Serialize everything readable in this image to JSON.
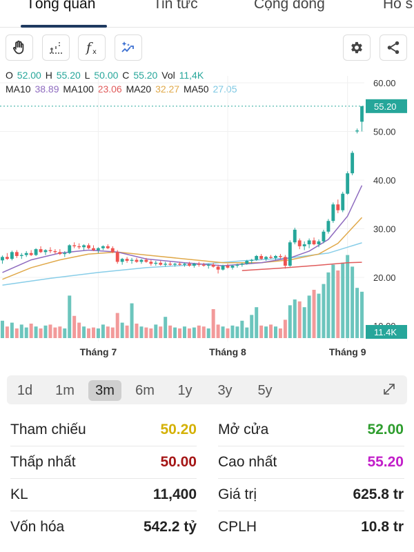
{
  "tabs": [
    {
      "label": "Tổng quan",
      "active": true
    },
    {
      "label": "Tin tức",
      "active": false
    },
    {
      "label": "Cộng đồng",
      "active": false
    },
    {
      "label": "Hồ s",
      "active": false
    }
  ],
  "toolbar": {
    "left_icons": [
      "hand-icon",
      "crosshair-icon",
      "function-icon",
      "magic-wand-icon"
    ],
    "right_icons": [
      "gear-icon",
      "share-icon"
    ]
  },
  "legend": {
    "ohlc": [
      {
        "k": "O",
        "v": "52.00"
      },
      {
        "k": "H",
        "v": "55.20"
      },
      {
        "k": "L",
        "v": "50.00"
      },
      {
        "k": "C",
        "v": "55.20"
      },
      {
        "k": "Vol",
        "v": "11,4K"
      }
    ],
    "ma": [
      {
        "k": "MA10",
        "v": "38.89",
        "color": "#8e6bbf"
      },
      {
        "k": "MA100",
        "v": "23.06",
        "color": "#e05a5a"
      },
      {
        "k": "MA20",
        "v": "32.27",
        "color": "#e0a94a"
      },
      {
        "k": "MA50",
        "v": "27.05",
        "color": "#7ec8e3"
      }
    ]
  },
  "colors": {
    "up": "#26a69a",
    "down": "#ef5350",
    "vol_up": "#6cc5bd",
    "vol_down": "#f29a9a",
    "ma10": "#8e6bbf",
    "ma20": "#e0a94a",
    "ma50": "#87cde8",
    "ma100": "#e05a5a"
  },
  "chart_data": {
    "type": "candlestick",
    "ylim": [
      15,
      62
    ],
    "y_ticks": [
      "60.00",
      "50.00",
      "40.00",
      "30.00",
      "20.00",
      "10.00"
    ],
    "y_tick_values": [
      60,
      50,
      40,
      30,
      20,
      10
    ],
    "x_labels": [
      "Tháng 7",
      "Tháng 8",
      "Tháng 9"
    ],
    "x_label_indices": [
      20,
      47,
      72
    ],
    "last_price": "55.20",
    "last_volume": "11.4K",
    "candles": [
      [
        23.5,
        24.5,
        22.8,
        24.2
      ],
      [
        24.2,
        25.0,
        23.6,
        23.8
      ],
      [
        23.8,
        25.5,
        23.5,
        25.2
      ],
      [
        25.2,
        25.6,
        24.0,
        24.4
      ],
      [
        24.4,
        25.0,
        23.8,
        24.6
      ],
      [
        24.6,
        25.4,
        24.2,
        25.0
      ],
      [
        25.0,
        25.6,
        24.4,
        24.6
      ],
      [
        24.6,
        26.0,
        24.4,
        25.8
      ],
      [
        25.8,
        26.4,
        25.0,
        25.2
      ],
      [
        25.2,
        25.8,
        24.6,
        25.6
      ],
      [
        25.6,
        26.2,
        25.0,
        25.4
      ],
      [
        25.4,
        25.8,
        24.8,
        25.2
      ],
      [
        25.2,
        25.8,
        24.6,
        24.8
      ],
      [
        24.8,
        25.4,
        24.2,
        25.0
      ],
      [
        25.0,
        26.8,
        24.8,
        26.6
      ],
      [
        26.6,
        27.2,
        26.0,
        26.4
      ],
      [
        26.4,
        27.0,
        25.8,
        26.2
      ],
      [
        26.2,
        26.8,
        25.6,
        26.6
      ],
      [
        26.6,
        27.0,
        25.8,
        26.0
      ],
      [
        26.0,
        26.6,
        25.4,
        25.6
      ],
      [
        25.6,
        26.2,
        25.0,
        26.0
      ],
      [
        26.0,
        26.6,
        25.6,
        26.4
      ],
      [
        26.4,
        26.8,
        25.8,
        26.0
      ],
      [
        26.0,
        26.4,
        25.0,
        25.2
      ],
      [
        25.2,
        25.6,
        22.8,
        23.2
      ],
      [
        23.2,
        24.0,
        22.6,
        23.8
      ],
      [
        23.8,
        24.2,
        23.0,
        23.4
      ],
      [
        23.4,
        24.0,
        22.8,
        23.6
      ],
      [
        23.6,
        24.0,
        23.0,
        23.2
      ],
      [
        23.2,
        23.8,
        22.8,
        23.6
      ],
      [
        23.6,
        24.0,
        23.0,
        23.2
      ],
      [
        23.2,
        23.6,
        22.4,
        22.8
      ],
      [
        22.8,
        23.4,
        22.4,
        23.0
      ],
      [
        23.0,
        23.4,
        22.4,
        22.6
      ],
      [
        22.6,
        23.2,
        22.2,
        22.8
      ],
      [
        22.8,
        23.2,
        22.4,
        22.6
      ],
      [
        22.6,
        23.0,
        22.2,
        22.8
      ],
      [
        22.8,
        23.2,
        22.4,
        22.6
      ],
      [
        22.6,
        23.0,
        22.2,
        22.8
      ],
      [
        22.8,
        23.2,
        22.2,
        22.4
      ],
      [
        22.4,
        23.0,
        22.0,
        22.8
      ],
      [
        22.8,
        23.2,
        22.2,
        22.6
      ],
      [
        22.6,
        23.0,
        22.2,
        22.4
      ],
      [
        22.4,
        22.8,
        21.8,
        22.6
      ],
      [
        22.6,
        23.0,
        22.0,
        22.2
      ],
      [
        22.2,
        22.6,
        20.8,
        21.6
      ],
      [
        21.6,
        22.6,
        21.4,
        22.4
      ],
      [
        22.4,
        22.8,
        21.8,
        22.0
      ],
      [
        22.0,
        22.6,
        21.6,
        22.4
      ],
      [
        22.4,
        22.8,
        22.0,
        22.6
      ],
      [
        22.6,
        23.0,
        22.2,
        22.8
      ],
      [
        22.8,
        23.6,
        22.6,
        23.4
      ],
      [
        23.4,
        23.8,
        22.8,
        23.6
      ],
      [
        23.6,
        24.6,
        23.4,
        24.4
      ],
      [
        24.4,
        24.8,
        23.6,
        23.8
      ],
      [
        23.8,
        24.4,
        23.4,
        24.2
      ],
      [
        24.2,
        24.6,
        23.8,
        24.0
      ],
      [
        24.0,
        24.6,
        23.6,
        24.4
      ],
      [
        24.4,
        24.8,
        23.8,
        24.2
      ],
      [
        24.2,
        24.6,
        21.8,
        22.4
      ],
      [
        22.4,
        27.6,
        22.2,
        27.2
      ],
      [
        27.2,
        30.2,
        26.8,
        29.8
      ],
      [
        27.6,
        28.0,
        25.8,
        26.4
      ],
      [
        26.4,
        27.4,
        25.6,
        26.8
      ],
      [
        26.8,
        28.0,
        26.0,
        27.6
      ],
      [
        27.6,
        28.2,
        26.6,
        26.8
      ],
      [
        26.8,
        27.8,
        26.2,
        27.4
      ],
      [
        27.4,
        29.8,
        27.0,
        29.4
      ],
      [
        29.4,
        32.0,
        29.0,
        31.6
      ],
      [
        31.6,
        35.4,
        31.2,
        35.0
      ],
      [
        35.0,
        36.0,
        33.2,
        33.8
      ],
      [
        33.8,
        37.6,
        33.4,
        37.2
      ],
      [
        37.2,
        41.8,
        37.0,
        41.4
      ],
      [
        41.4,
        46.0,
        41.0,
        45.6
      ],
      [
        50.0,
        50.6,
        49.6,
        50.2
      ],
      [
        52.0,
        55.2,
        50.0,
        55.2
      ]
    ],
    "volumes": [
      1.8,
      1.2,
      1.6,
      1.0,
      1.4,
      1.1,
      1.5,
      1.2,
      1.0,
      1.3,
      1.4,
      1.1,
      1.2,
      1.0,
      4.4,
      2.3,
      1.6,
      1.2,
      1.0,
      1.1,
      1.0,
      1.4,
      1.2,
      1.1,
      2.6,
      1.6,
      1.3,
      3.6,
      1.5,
      1.2,
      1.1,
      1.0,
      1.4,
      1.2,
      2.2,
      1.3,
      1.1,
      1.0,
      1.2,
      1.0,
      1.1,
      1.3,
      1.2,
      1.0,
      3.0,
      1.4,
      1.2,
      1.0,
      1.3,
      1.2,
      1.8,
      1.1,
      2.4,
      3.2,
      1.3,
      1.2,
      1.4,
      1.2,
      1.0,
      1.9,
      3.4,
      4.0,
      3.8,
      3.2,
      4.4,
      5.0,
      4.6,
      5.6,
      6.8,
      7.6,
      7.0,
      7.8,
      8.6,
      7.4,
      5.2,
      4.8
    ],
    "ma10": [
      {
        "i": 0,
        "v": 21.0
      },
      {
        "i": 6,
        "v": 23.6
      },
      {
        "i": 12,
        "v": 25.0
      },
      {
        "i": 18,
        "v": 25.6
      },
      {
        "i": 24,
        "v": 25.2
      },
      {
        "i": 30,
        "v": 23.8
      },
      {
        "i": 38,
        "v": 23.0
      },
      {
        "i": 46,
        "v": 22.4
      },
      {
        "i": 54,
        "v": 23.0
      },
      {
        "i": 60,
        "v": 24.0
      },
      {
        "i": 64,
        "v": 25.4
      },
      {
        "i": 68,
        "v": 27.8
      },
      {
        "i": 72,
        "v": 32.6
      },
      {
        "i": 75,
        "v": 38.9
      }
    ],
    "ma20": [
      {
        "i": 0,
        "v": 19.6
      },
      {
        "i": 6,
        "v": 22.0
      },
      {
        "i": 12,
        "v": 23.6
      },
      {
        "i": 18,
        "v": 24.8
      },
      {
        "i": 24,
        "v": 25.2
      },
      {
        "i": 30,
        "v": 24.6
      },
      {
        "i": 38,
        "v": 23.8
      },
      {
        "i": 46,
        "v": 23.0
      },
      {
        "i": 54,
        "v": 23.0
      },
      {
        "i": 60,
        "v": 23.6
      },
      {
        "i": 66,
        "v": 24.8
      },
      {
        "i": 70,
        "v": 27.0
      },
      {
        "i": 75,
        "v": 32.3
      }
    ],
    "ma50": [
      {
        "i": 0,
        "v": 18.4
      },
      {
        "i": 10,
        "v": 19.8
      },
      {
        "i": 20,
        "v": 21.0
      },
      {
        "i": 30,
        "v": 22.0
      },
      {
        "i": 40,
        "v": 22.6
      },
      {
        "i": 50,
        "v": 23.4
      },
      {
        "i": 60,
        "v": 24.0
      },
      {
        "i": 68,
        "v": 25.0
      },
      {
        "i": 75,
        "v": 27.1
      }
    ],
    "ma100": [
      {
        "i": 50,
        "v": 21.4
      },
      {
        "i": 58,
        "v": 21.9
      },
      {
        "i": 66,
        "v": 22.5
      },
      {
        "i": 72,
        "v": 23.0
      },
      {
        "i": 75,
        "v": 23.1
      }
    ]
  },
  "ranges": [
    "1d",
    "1m",
    "3m",
    "6m",
    "1y",
    "3y",
    "5y"
  ],
  "active_range": "3m",
  "stats": {
    "tham_chieu": {
      "label": "Tham chiếu",
      "value": "50.20",
      "color": "#d4b106"
    },
    "mo_cua": {
      "label": "Mở cửa",
      "value": "52.00",
      "color": "#2e9d2e"
    },
    "thap_nhat": {
      "label": "Thấp nhất",
      "value": "50.00",
      "color": "#a51616"
    },
    "cao_nhat": {
      "label": "Cao nhất",
      "value": "55.20",
      "color": "#c21ec9"
    },
    "kl": {
      "label": "KL",
      "value": "11,400",
      "color": "#222222"
    },
    "gia_tri": {
      "label": "Giá trị",
      "value": "625.8 tr",
      "color": "#222222"
    },
    "von_hoa": {
      "label": "Vốn hóa",
      "value": "542.2 tỷ",
      "color": "#222222"
    },
    "cplh": {
      "label": "CPLH",
      "value": "10.8 tr",
      "color": "#222222"
    }
  }
}
